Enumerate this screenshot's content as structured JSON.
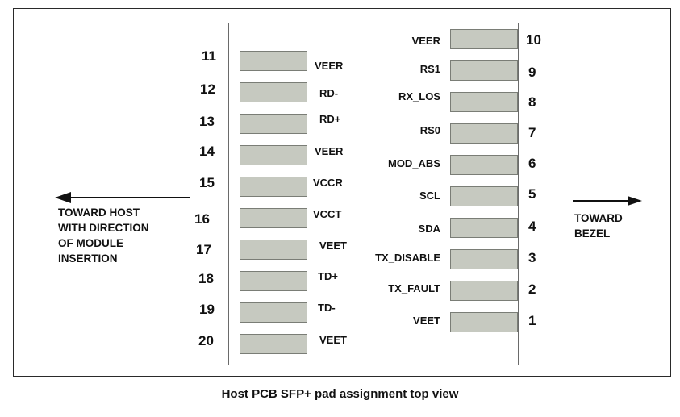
{
  "left_pins": [
    {
      "num": "11",
      "label": "VEER"
    },
    {
      "num": "12",
      "label": "RD-"
    },
    {
      "num": "13",
      "label": "RD+"
    },
    {
      "num": "14",
      "label": "VEER"
    },
    {
      "num": "15",
      "label": "VCCR"
    },
    {
      "num": "16",
      "label": "VCCT"
    },
    {
      "num": "17",
      "label": "VEET"
    },
    {
      "num": "18",
      "label": "TD+"
    },
    {
      "num": "19",
      "label": "TD-"
    },
    {
      "num": "20",
      "label": "VEET"
    }
  ],
  "right_pins": [
    {
      "num": "10",
      "label": "VEER"
    },
    {
      "num": "9",
      "label": "RS1"
    },
    {
      "num": "8",
      "label": "RX_LOS"
    },
    {
      "num": "7",
      "label": "RS0"
    },
    {
      "num": "6",
      "label": "MOD_ABS"
    },
    {
      "num": "5",
      "label": "SCL"
    },
    {
      "num": "4",
      "label": "SDA"
    },
    {
      "num": "3",
      "label": "TX_DISABLE"
    },
    {
      "num": "2",
      "label": "TX_FAULT"
    },
    {
      "num": "1",
      "label": "VEET"
    }
  ],
  "left_note": [
    "TOWARD HOST",
    "WITH DIRECTION",
    "OF MODULE",
    "INSERTION"
  ],
  "right_note": [
    "TOWARD",
    "BEZEL"
  ],
  "caption": "Host PCB SFP+ pad assignment top view"
}
